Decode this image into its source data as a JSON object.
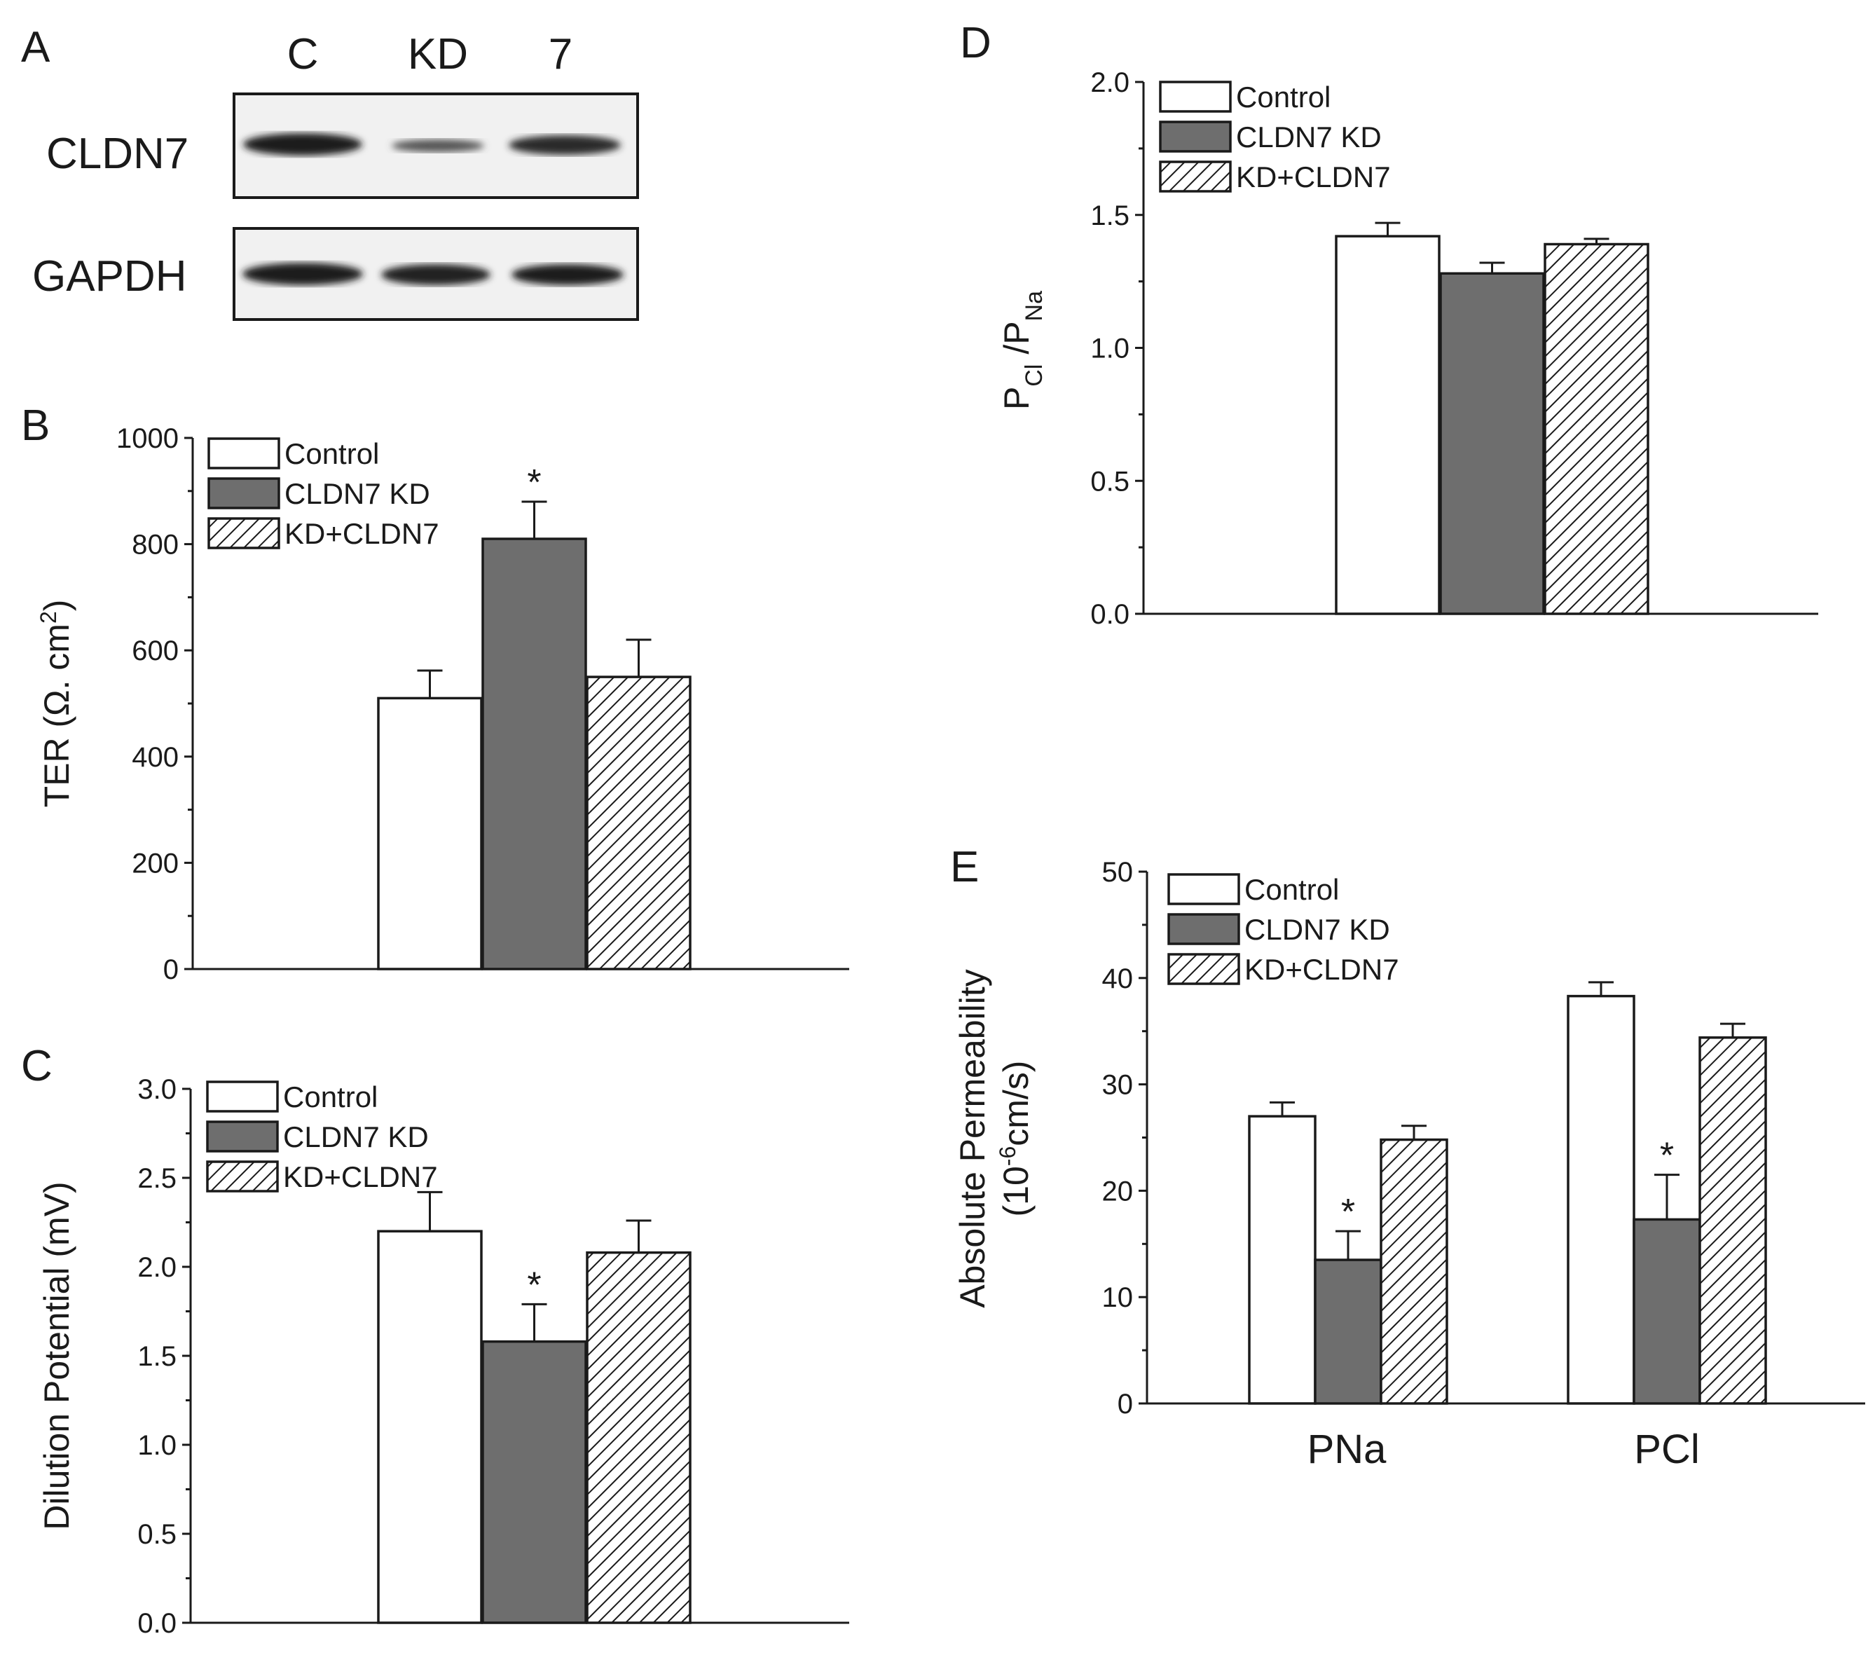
{
  "figure": {
    "panel_letters": [
      "A",
      "B",
      "C",
      "D",
      "E"
    ]
  },
  "western_blot": {
    "lane_labels": [
      "C",
      "KD",
      "7"
    ],
    "row_labels": [
      "CLDN7",
      "GAPDH"
    ]
  },
  "legend": {
    "items": [
      "Control",
      "CLDN7 KD",
      "KD+CLDN7"
    ]
  },
  "colors": {
    "control": "#ffffff",
    "kd": "#6e6e6e",
    "rescue_hatch": "#1a1a1a"
  },
  "chart_data": [
    {
      "panel": "B",
      "type": "bar",
      "categories": [
        "Control",
        "CLDN7 KD",
        "KD+CLDN7"
      ],
      "values": [
        510,
        810,
        550
      ],
      "errors": [
        52,
        70,
        70
      ],
      "significance": [
        "",
        "*",
        ""
      ],
      "ylabel": "TER (Ω. cm²)",
      "ylim": [
        0,
        1000
      ],
      "yticks": [
        0,
        200,
        400,
        600,
        800,
        1000
      ],
      "ytick_labels": [
        "0",
        "200",
        "400",
        "600",
        "800",
        "1000"
      ]
    },
    {
      "panel": "C",
      "type": "bar",
      "categories": [
        "Control",
        "CLDN7 KD",
        "KD+CLDN7"
      ],
      "values": [
        2.2,
        1.58,
        2.08
      ],
      "errors": [
        0.22,
        0.21,
        0.18
      ],
      "significance": [
        "",
        "*",
        ""
      ],
      "ylabel": "Dilution Potential (mV)",
      "ylim": [
        0,
        3.0
      ],
      "yticks": [
        0,
        0.5,
        1.0,
        1.5,
        2.0,
        2.5,
        3.0
      ],
      "ytick_labels": [
        "0.0",
        "0.5",
        "1.0",
        "1.5",
        "2.0",
        "2.5",
        "3.0"
      ]
    },
    {
      "panel": "D",
      "type": "bar",
      "categories": [
        "Control",
        "CLDN7 KD",
        "KD+CLDN7"
      ],
      "values": [
        1.42,
        1.28,
        1.39
      ],
      "errors": [
        0.05,
        0.04,
        0.02
      ],
      "significance": [
        "",
        "",
        ""
      ],
      "ylabel": "PCl /PNa",
      "ylabel_parts": [
        "P",
        "Cl",
        " /P",
        "Na"
      ],
      "ylim": [
        0,
        2.0
      ],
      "yticks": [
        0,
        0.5,
        1.0,
        1.5,
        2.0
      ],
      "ytick_labels": [
        "0.0",
        "0.5",
        "1.0",
        "1.5",
        "2.0"
      ]
    },
    {
      "panel": "E",
      "type": "bar",
      "categories": [
        "PNa",
        "PCl"
      ],
      "series": [
        {
          "name": "Control",
          "values": [
            27.0,
            38.3
          ],
          "errors": [
            1.3,
            1.3
          ]
        },
        {
          "name": "CLDN7 KD",
          "values": [
            13.5,
            17.3
          ],
          "errors": [
            2.7,
            4.2
          ]
        },
        {
          "name": "KD+CLDN7",
          "values": [
            24.8,
            34.4
          ],
          "errors": [
            1.3,
            1.3
          ]
        }
      ],
      "significance": [
        [
          "",
          "*",
          ""
        ],
        [
          "",
          "*",
          ""
        ]
      ],
      "ylabel": "Absolute Permeability",
      "ylabel2": "(10-6cm/s)",
      "ylabel2_parts": [
        "(10",
        "-6",
        "cm/s)"
      ],
      "ylim": [
        0,
        50
      ],
      "yticks": [
        0,
        10,
        20,
        30,
        40,
        50
      ],
      "ytick_labels": [
        "0",
        "10",
        "20",
        "30",
        "40",
        "50"
      ]
    }
  ]
}
